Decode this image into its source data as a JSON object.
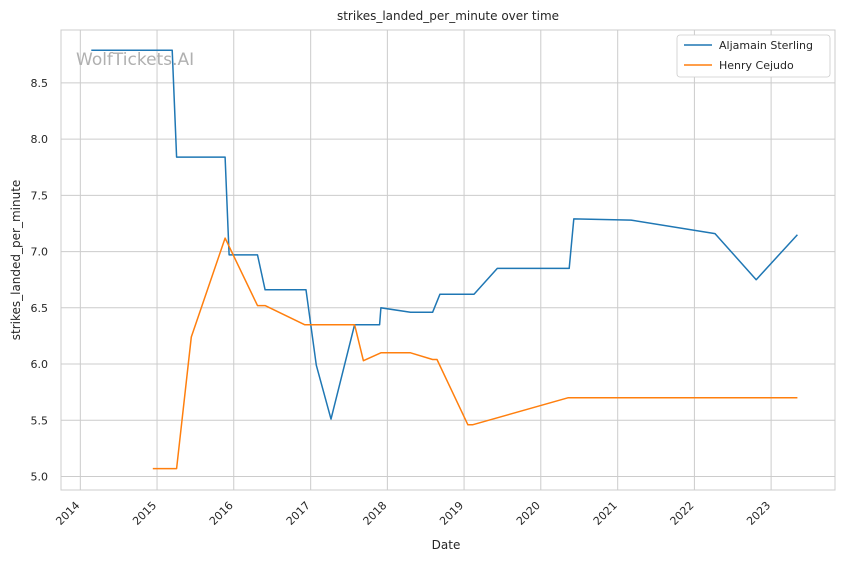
{
  "watermark": "WolfTickets.AI",
  "chart_data": {
    "type": "line",
    "title": "strikes_landed_per_minute over time",
    "xlabel": "Date",
    "ylabel": "strikes_landed_per_minute",
    "x_type": "date",
    "xlim": [
      "2013-10-01",
      "2023-11-01"
    ],
    "ylim": [
      4.88,
      8.97
    ],
    "x_ticks": [
      "2014",
      "2015",
      "2016",
      "2017",
      "2018",
      "2019",
      "2020",
      "2021",
      "2022",
      "2023"
    ],
    "y_ticks": [
      "5.0",
      "5.5",
      "6.0",
      "6.5",
      "7.0",
      "7.5",
      "8.0",
      "8.5"
    ],
    "grid": true,
    "legend_position": "top-right",
    "series": [
      {
        "name": "Aljamain Sterling",
        "color": "#1f77b4",
        "points": [
          [
            "2014-02-22",
            8.79
          ],
          [
            "2015-03-14",
            8.79
          ],
          [
            "2015-04-04",
            7.84
          ],
          [
            "2015-11-21",
            7.84
          ],
          [
            "2015-12-10",
            6.97
          ],
          [
            "2016-04-23",
            6.97
          ],
          [
            "2016-05-29",
            6.66
          ],
          [
            "2016-12-10",
            6.66
          ],
          [
            "2017-01-28",
            5.99
          ],
          [
            "2017-04-08",
            5.51
          ],
          [
            "2017-07-29",
            6.35
          ],
          [
            "2017-11-25",
            6.35
          ],
          [
            "2017-12-01",
            6.5
          ],
          [
            "2018-04-21",
            6.46
          ],
          [
            "2018-08-04",
            6.46
          ],
          [
            "2018-09-08",
            6.62
          ],
          [
            "2019-02-17",
            6.62
          ],
          [
            "2019-06-08",
            6.85
          ],
          [
            "2020-05-15",
            6.85
          ],
          [
            "2020-06-06",
            7.29
          ],
          [
            "2021-03-06",
            7.28
          ],
          [
            "2022-04-09",
            7.16
          ],
          [
            "2022-10-22",
            6.75
          ],
          [
            "2023-05-06",
            7.15
          ]
        ]
      },
      {
        "name": "Henry Cejudo",
        "color": "#ff7f0e",
        "points": [
          [
            "2014-12-12",
            5.07
          ],
          [
            "2015-04-04",
            5.07
          ],
          [
            "2015-06-13",
            6.24
          ],
          [
            "2015-11-21",
            7.12
          ],
          [
            "2016-04-23",
            6.52
          ],
          [
            "2016-05-29",
            6.52
          ],
          [
            "2016-12-03",
            6.35
          ],
          [
            "2017-07-29",
            6.35
          ],
          [
            "2017-09-09",
            6.03
          ],
          [
            "2017-12-01",
            6.1
          ],
          [
            "2018-04-21",
            6.1
          ],
          [
            "2018-08-04",
            6.04
          ],
          [
            "2018-08-25",
            6.04
          ],
          [
            "2019-01-19",
            5.46
          ],
          [
            "2019-02-10",
            5.46
          ],
          [
            "2020-05-09",
            5.7
          ],
          [
            "2022-11-10",
            5.7
          ],
          [
            "2023-05-06",
            5.7
          ]
        ]
      }
    ]
  }
}
